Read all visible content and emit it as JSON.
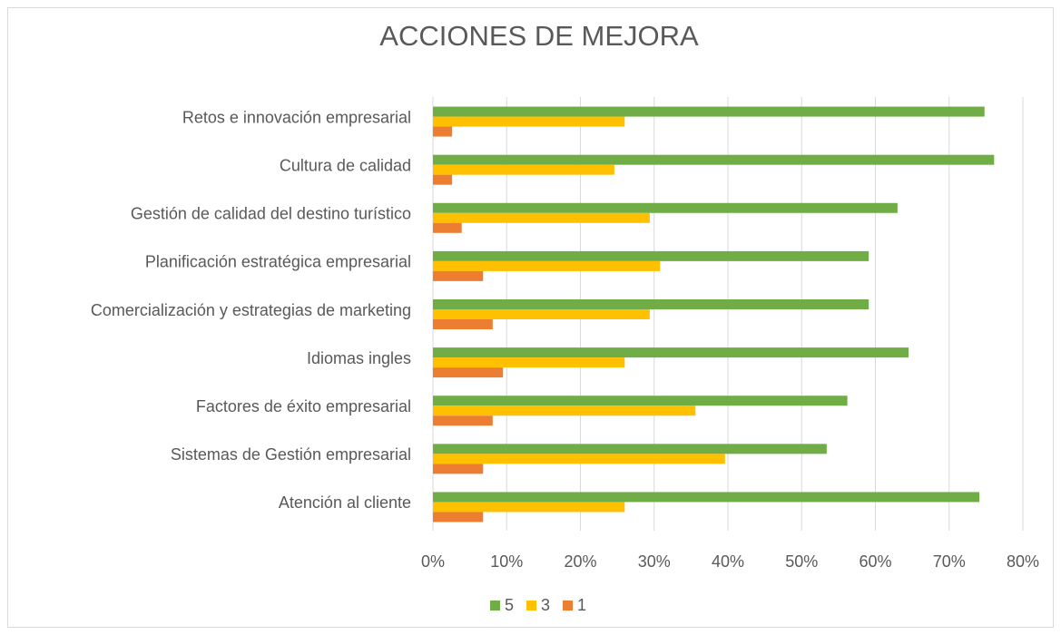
{
  "chart_data": {
    "type": "barh",
    "title": "ACCIONES DE MEJORA",
    "categories": [
      "Retos e innovación empresarial",
      "Cultura de calidad",
      "Gestión de calidad del destino turístico",
      "Planificación estratégica empresarial",
      "Comercialización y estrategias de marketing",
      "Idiomas ingles",
      "Factores de éxito empresarial",
      "Sistemas de Gestión empresarial",
      "Atención al cliente"
    ],
    "series": [
      {
        "name": "5",
        "color": "#70ad47",
        "values": [
          74.8,
          76.1,
          63.0,
          59.1,
          59.1,
          64.5,
          56.2,
          53.4,
          74.1
        ]
      },
      {
        "name": "3",
        "color": "#ffc000",
        "values": [
          26.0,
          24.6,
          29.4,
          30.8,
          29.4,
          26.0,
          35.6,
          39.6,
          26.0
        ]
      },
      {
        "name": "1",
        "color": "#ed7d31",
        "values": [
          2.6,
          2.6,
          3.9,
          6.8,
          8.1,
          9.5,
          8.1,
          6.8,
          6.8
        ]
      }
    ],
    "xlim": [
      0,
      80
    ],
    "xticks": [
      {
        "value": 0,
        "label": "0%"
      },
      {
        "value": 10,
        "label": "10%"
      },
      {
        "value": 20,
        "label": "20%"
      },
      {
        "value": 30,
        "label": "30%"
      },
      {
        "value": 40,
        "label": "40%"
      },
      {
        "value": 50,
        "label": "50%"
      },
      {
        "value": 60,
        "label": "60%"
      },
      {
        "value": 70,
        "label": "70%"
      },
      {
        "value": 80,
        "label": "80%"
      }
    ],
    "grid": true,
    "legend": "bottom"
  }
}
